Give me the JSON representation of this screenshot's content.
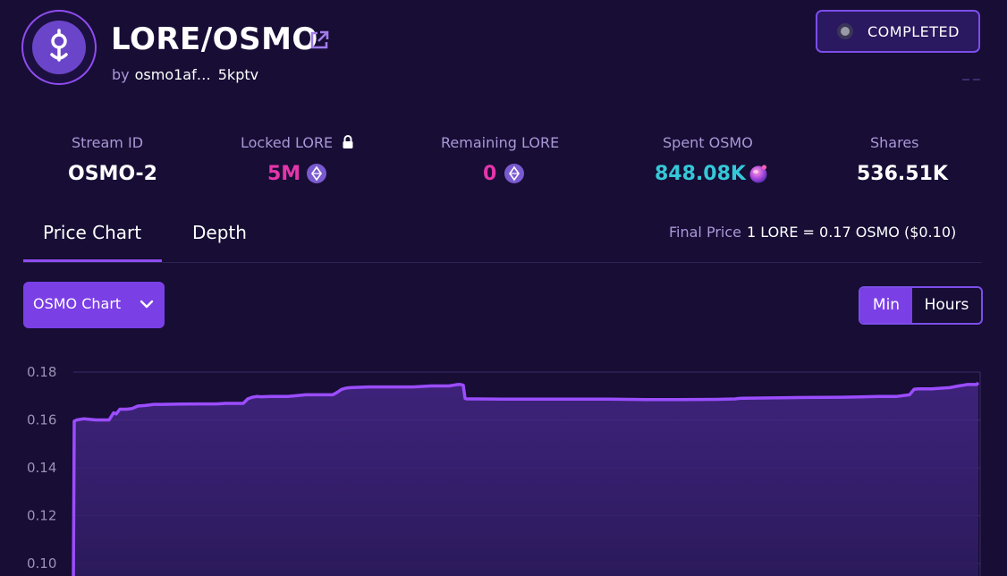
{
  "header": {
    "pair_title": "LORE/OSMO",
    "by_label": "by",
    "creator_address": "osmo1af…",
    "creator_address_tail": "5kptv",
    "status_label": "COMPLETED"
  },
  "stats": [
    {
      "label": "Stream ID",
      "value": "OSMO-2"
    },
    {
      "label": "Locked LORE",
      "value": "5M"
    },
    {
      "label": "Remaining LORE",
      "value": "0"
    },
    {
      "label": "Spent OSMO",
      "value": "848.08K"
    },
    {
      "label": "Shares",
      "value": "536.51K"
    }
  ],
  "tabs": [
    {
      "label": "Price Chart",
      "active": true
    },
    {
      "label": "Depth",
      "active": false
    }
  ],
  "final_price": {
    "label": "Final Price",
    "value": "1 LORE = 0.17 OSMO ($0.10)"
  },
  "controls": {
    "chart_selector": "OSMO Chart",
    "interval_options": [
      "Min",
      "Hours"
    ],
    "interval_selected": "Min"
  },
  "colors": {
    "background": "#170d35",
    "accent": "#8f4cf0",
    "muted_text": "#a998d6",
    "pink_value": "#e535ab",
    "teal_value": "#35c8d8",
    "line": "#9b4dff"
  },
  "icons": {
    "logo": "osmosis-stream-logo-icon",
    "external_link": "external-link-icon",
    "lock": "lock-icon",
    "lore_token": "lore-token-icon",
    "osmo_token": "osmo-token-icon",
    "dropdown": "chevron-down-icon"
  },
  "chart_data": {
    "type": "area",
    "yticks": [
      "0.18",
      "0.16",
      "0.14",
      "0.12",
      "0.10"
    ],
    "ylim": [
      0.0965,
      0.1835
    ],
    "x": [
      0,
      1,
      4,
      12,
      25,
      40,
      45,
      48,
      52,
      55,
      60,
      66,
      72,
      75,
      80,
      90,
      100,
      120,
      140,
      160,
      170,
      180,
      190,
      195,
      200,
      205,
      210,
      220,
      230,
      240,
      260,
      280,
      290,
      295,
      300,
      305,
      310,
      330,
      360,
      380,
      400,
      420,
      430,
      433,
      436,
      438,
      440,
      450,
      480,
      500,
      520,
      560,
      600,
      640,
      680,
      720,
      740,
      745,
      750,
      780,
      800,
      820,
      860,
      880,
      900,
      920,
      935,
      940,
      945,
      960,
      980,
      990,
      995,
      1000,
      1010,
      1012
    ],
    "values": [
      0.09,
      0.1595,
      0.16,
      0.1605,
      0.16,
      0.16,
      0.163,
      0.1625,
      0.1645,
      0.1645,
      0.1645,
      0.1648,
      0.1658,
      0.1659,
      0.166,
      0.1665,
      0.1665,
      0.1666,
      0.1667,
      0.1667,
      0.1669,
      0.1669,
      0.1669,
      0.1688,
      0.1695,
      0.1698,
      0.1697,
      0.1698,
      0.1698,
      0.1698,
      0.1705,
      0.1705,
      0.1705,
      0.1715,
      0.1728,
      0.1733,
      0.1735,
      0.1738,
      0.1738,
      0.1738,
      0.1742,
      0.1742,
      0.1748,
      0.1748,
      0.1745,
      0.169,
      0.1688,
      0.1688,
      0.1687,
      0.1687,
      0.1687,
      0.1687,
      0.1687,
      0.1685,
      0.1685,
      0.1686,
      0.1688,
      0.169,
      0.1691,
      0.1692,
      0.1693,
      0.1694,
      0.1695,
      0.1696,
      0.1698,
      0.1698,
      0.1705,
      0.1728,
      0.173,
      0.173,
      0.1735,
      0.1742,
      0.1745,
      0.1748,
      0.1748,
      0.1755
    ]
  }
}
